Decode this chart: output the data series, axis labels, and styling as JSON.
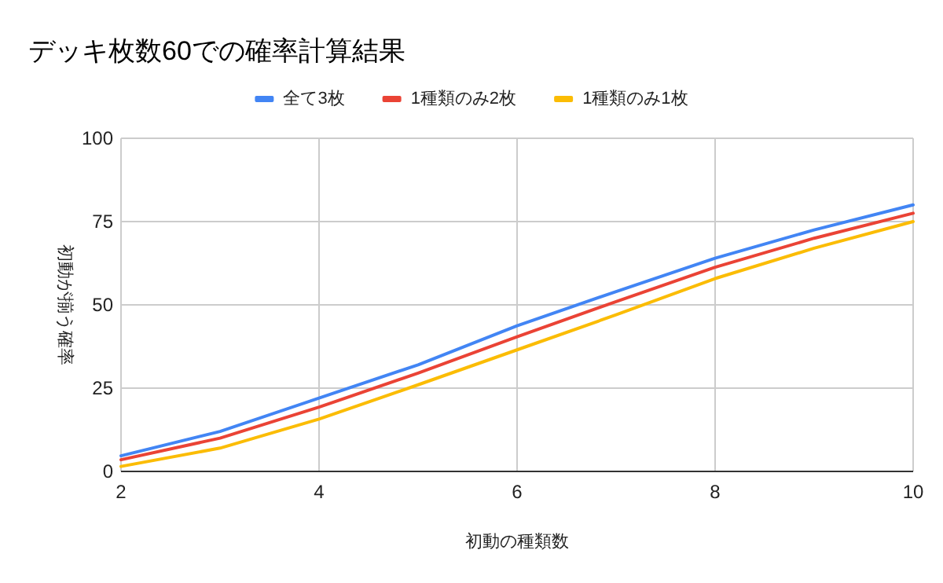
{
  "chart_data": {
    "type": "line",
    "title": "デッキ枚数60での確率計算結果",
    "xlabel": "初動の種類数",
    "ylabel": "初動が揃う確率",
    "x": [
      2,
      3,
      4,
      5,
      6,
      7,
      8,
      9,
      10
    ],
    "series": [
      {
        "name": "全て3枚",
        "color": "#4285f4",
        "values": [
          4.7,
          12,
          22,
          32,
          43.7,
          54,
          64,
          72.5,
          80
        ]
      },
      {
        "name": "1種類のみ2枚",
        "color": "#ea4335",
        "values": [
          3.5,
          10,
          19.3,
          29.5,
          40.4,
          51,
          61.3,
          70,
          77.5
        ]
      },
      {
        "name": "1種類のみ1枚",
        "color": "#fbbc04",
        "values": [
          1.5,
          7,
          15.7,
          26,
          36.5,
          47,
          57.9,
          67,
          75
        ]
      }
    ],
    "xlim": [
      2,
      10
    ],
    "xticks": [
      2,
      4,
      6,
      8,
      10
    ],
    "ylim": [
      0,
      100
    ],
    "yticks": [
      0,
      25,
      50,
      75,
      100
    ],
    "grid": true,
    "legend": "top",
    "marker": "none",
    "line_style": "solid"
  }
}
